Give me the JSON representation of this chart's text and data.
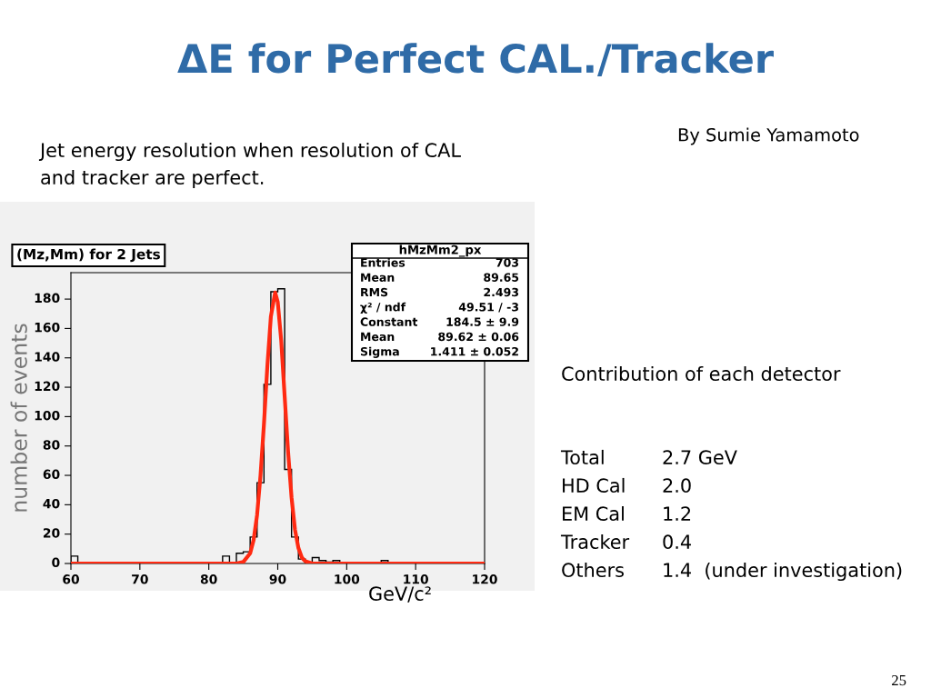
{
  "chart_data": {
    "type": "histogram",
    "title": "ΔE for Perfect CAL./Tracker",
    "subtitle": "(Mz,Mm) for 2 Jets",
    "xlabel": "GeV/c²",
    "ylabel": "number of events",
    "bins": [
      60,
      61,
      62,
      63,
      64,
      65,
      66,
      67,
      68,
      69,
      70,
      71,
      72,
      73,
      74,
      75,
      76,
      77,
      78,
      79,
      80,
      81,
      82,
      83,
      84,
      85,
      86,
      87,
      88,
      89,
      90,
      91,
      92,
      93,
      94,
      95,
      96,
      97,
      98,
      99,
      100,
      101,
      102,
      103,
      104,
      105,
      106,
      107,
      108,
      109,
      110,
      111,
      112,
      113,
      114,
      115,
      116,
      117,
      118,
      119,
      120
    ],
    "values": [
      5,
      0,
      0,
      0,
      0,
      0,
      0,
      0,
      0,
      0,
      0,
      0,
      0,
      0,
      0,
      0,
      0,
      0,
      0,
      0,
      0,
      0,
      5,
      0,
      7,
      8,
      18,
      55,
      122,
      185,
      187,
      64,
      18,
      3,
      0,
      4,
      2,
      1,
      2,
      0,
      0,
      0,
      0,
      0,
      0,
      2,
      0,
      0,
      0,
      0,
      0,
      0,
      0,
      0,
      0,
      0,
      0,
      0,
      0,
      0
    ],
    "color": "#000000",
    "series": [
      {
        "type": "line",
        "color": "#ff2a12",
        "x": [
          60,
          84,
          85,
          86,
          86.5,
          87,
          87.5,
          88,
          88.5,
          89,
          89.62,
          90,
          90.5,
          91,
          91.5,
          92,
          92.5,
          93,
          93.5,
          94,
          95,
          120
        ],
        "values": [
          0,
          0,
          1,
          7,
          16,
          33,
          60,
          95,
          135,
          168,
          184.5,
          178,
          152,
          114,
          76,
          45,
          23,
          10.5,
          4,
          1.5,
          0,
          0
        ]
      }
    ],
    "xlim": [
      60,
      120
    ],
    "ylim": [
      0,
      198
    ],
    "xticks": [
      60,
      70,
      80,
      90,
      100,
      110,
      120
    ],
    "yticks": [
      0,
      20,
      40,
      60,
      80,
      100,
      120,
      140,
      160,
      180
    ],
    "annotations": [
      "By Sumie Yamamoto",
      "Jet energy resolution when resolution of CAL",
      "and tracker are perfect.",
      "hMzMm2_px",
      "Entries",
      "703",
      "Mean",
      "89.65",
      "RMS",
      "2.493",
      "χ² / ndf",
      "49.51 / -3",
      "Constant",
      "184.5 ± 9.9",
      "Mean",
      "89.62 ± 0.06",
      "Sigma",
      "1.411 ± 0.052",
      "Contribution of each detector",
      "Total",
      "2.7 GeV",
      "HD Cal",
      "2.0",
      "EM Cal",
      "1.2",
      "Tracker",
      "0.4",
      "Others",
      "1.4  (under investigation)",
      "25"
    ]
  }
}
